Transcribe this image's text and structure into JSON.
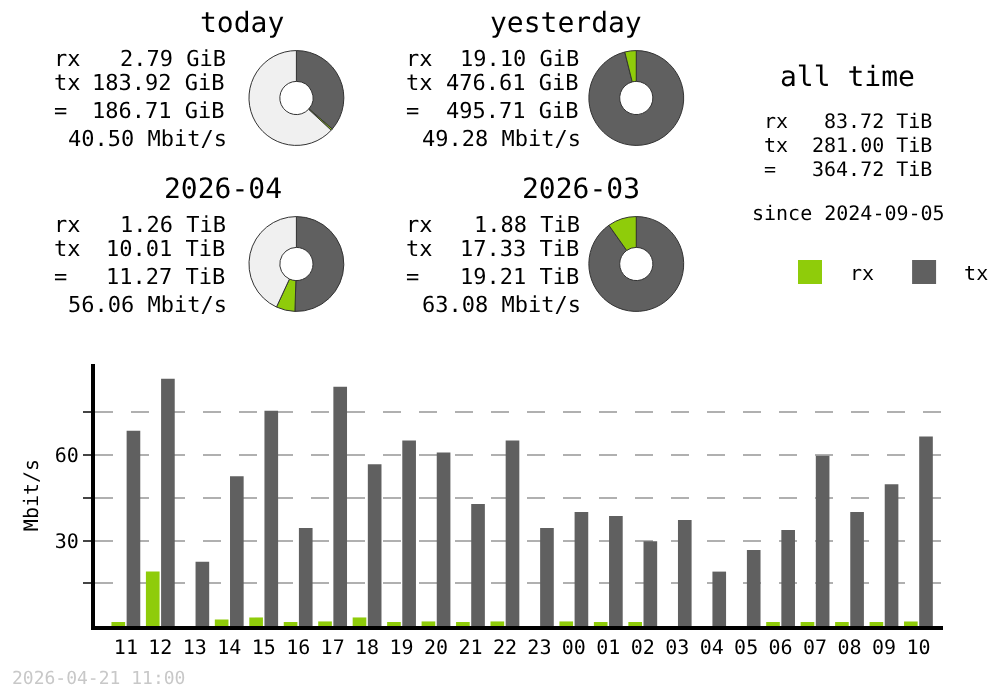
{
  "chart_data": [
    {
      "type": "donut",
      "title": "today",
      "categories": [
        null,
        null,
        null
      ],
      "values": [
        36.35,
        0.55,
        63.1
      ],
      "colors": [
        "#606060",
        "#8fcc0a",
        "#f0f0f0"
      ],
      "annotations": [
        "rx",
        "2.79 GiB",
        "tx",
        "183.92 GiB",
        "=",
        "186.71 GiB",
        "40.50 Mbit/s"
      ]
    },
    {
      "type": "donut",
      "title": "yesterday",
      "categories": [
        null,
        null
      ],
      "values": [
        96.1,
        3.9
      ],
      "colors": [
        "#606060",
        "#8fcc0a"
      ],
      "annotations": [
        "rx",
        "19.10 GiB",
        "tx",
        "476.61 GiB",
        "=",
        "495.71 GiB",
        "49.28 Mbit/s"
      ]
    },
    {
      "type": "donut",
      "title": "2026-04",
      "categories": [
        null,
        null,
        null
      ],
      "values": [
        50.5,
        6.4,
        43.1
      ],
      "colors": [
        "#606060",
        "#8fcc0a",
        "#f0f0f0"
      ],
      "annotations": [
        "rx",
        "1.26 TiB",
        "tx",
        "10.01 TiB",
        "=",
        "11.27 TiB",
        "56.06 Mbit/s"
      ]
    },
    {
      "type": "donut",
      "title": "2026-03",
      "categories": [
        null,
        null
      ],
      "values": [
        90.2,
        9.8
      ],
      "colors": [
        "#606060",
        "#8fcc0a"
      ],
      "annotations": [
        "rx",
        "1.88 TiB",
        "tx",
        "17.33 TiB",
        "=",
        "19.21 TiB",
        "63.08 Mbit/s"
      ]
    },
    {
      "type": "other",
      "title": "all time",
      "annotations": [
        "rx",
        "83.72 TiB",
        "tx",
        "281.00 TiB",
        "=",
        "364.72 TiB",
        "since 2024-09-05"
      ]
    },
    {
      "type": "bar",
      "categories": [
        "11",
        "12",
        "13",
        "14",
        "15",
        "16",
        "17",
        "18",
        "19",
        "20",
        "21",
        "22",
        "23",
        "00",
        "01",
        "02",
        "03",
        "04",
        "05",
        "06",
        "07",
        "08",
        "09",
        "10"
      ],
      "series": [
        {
          "name": "rx",
          "color": "#8fcc0a",
          "values": [
            1,
            19.1,
            0,
            2.3,
            3,
            1,
            1.6,
            3,
            1,
            1.6,
            1,
            1.6,
            0,
            1.6,
            1,
            1,
            0,
            0,
            0,
            1,
            1,
            1,
            1,
            1.6
          ]
        },
        {
          "name": "tx",
          "color": "#606060",
          "values": [
            68.6,
            86.8,
            22.6,
            52.6,
            75.6,
            34.4,
            84.0,
            56.8,
            65.1,
            60.9,
            42.8,
            65.1,
            34.4,
            40.0,
            38.6,
            29.8,
            37.2,
            19.1,
            26.7,
            33.7,
            59.8,
            40.0,
            49.8,
            66.5
          ]
        }
      ],
      "ylabel": "Mbit/s",
      "ylim": [
        0,
        92
      ],
      "yticks": [
        {
          "value": 15,
          "label": null
        },
        30,
        {
          "value": 45,
          "label": null
        },
        60,
        {
          "value": 75,
          "label": null
        }
      ],
      "grid": "y",
      "legend": "top right",
      "annotations": [
        "2026-04-21 11:00"
      ]
    }
  ]
}
